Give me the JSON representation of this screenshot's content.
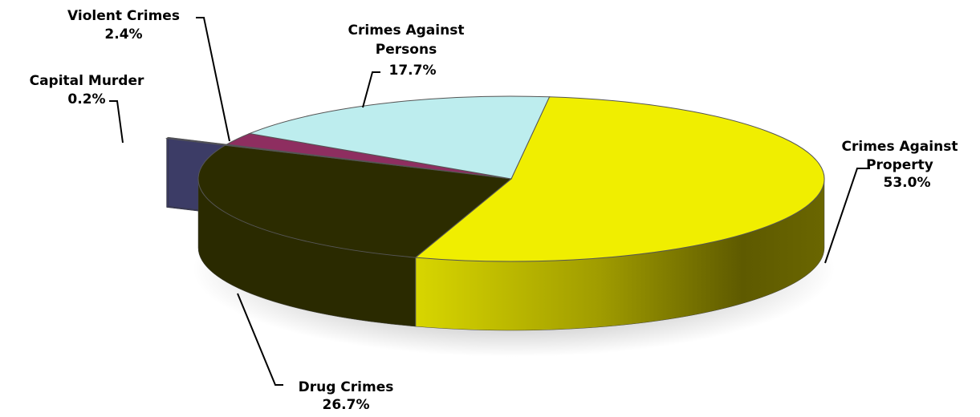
{
  "chart_data": {
    "type": "pie",
    "style": "3d-exploded",
    "title": "",
    "legend": "none",
    "unit": "%",
    "slices": [
      {
        "name": "Crimes Against Property",
        "label_lines": [
          "Crimes Against",
          "Property"
        ],
        "value": 53.0,
        "value_label": "53.0%",
        "color": "#F0EE00",
        "side_color": "#8A8600"
      },
      {
        "name": "Drug Crimes",
        "label_lines": [
          "Drug Crimes"
        ],
        "value": 26.7,
        "value_label": "26.7%",
        "color": "#2C2C00",
        "side_color": "#2A2A00"
      },
      {
        "name": "Capital Murder",
        "label_lines": [
          "Capital Murder"
        ],
        "value": 0.2,
        "value_label": "0.2%",
        "color": "#3C3C66",
        "side_color": "#3C3C66"
      },
      {
        "name": "Violent Crimes",
        "label_lines": [
          "Violent Crimes"
        ],
        "value": 2.4,
        "value_label": "2.4%",
        "color": "#8E2E60",
        "side_color": "#6E2048"
      },
      {
        "name": "Crimes Against Persons",
        "label_lines": [
          "Crimes Against",
          "Persons"
        ],
        "value": 17.7,
        "value_label": "17.7%",
        "color": "#BDEDEE",
        "side_color": "#8FBFC0"
      }
    ]
  }
}
